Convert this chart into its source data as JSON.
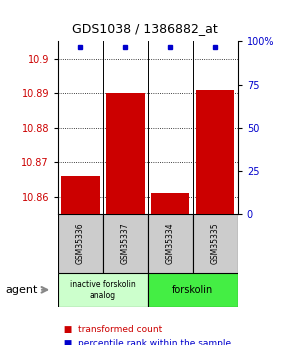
{
  "title": "GDS1038 / 1386882_at",
  "samples": [
    "GSM35336",
    "GSM35337",
    "GSM35334",
    "GSM35335"
  ],
  "bar_values": [
    10.866,
    10.89,
    10.861,
    10.891
  ],
  "percentile_values": [
    97,
    97,
    97,
    97
  ],
  "bar_color": "#cc0000",
  "dot_color": "#0000cc",
  "ylim_left": [
    10.855,
    10.905
  ],
  "ylim_right": [
    0,
    100
  ],
  "yticks_left": [
    10.86,
    10.87,
    10.88,
    10.89,
    10.9
  ],
  "yticks_right": [
    0,
    25,
    50,
    75,
    100
  ],
  "ytick_labels_right": [
    "0",
    "25",
    "50",
    "75",
    "100%"
  ],
  "groups": [
    {
      "label": "inactive forskolin\nanalog",
      "color": "#ccffcc"
    },
    {
      "label": "forskolin",
      "color": "#44ee44"
    }
  ],
  "agent_label": "agent",
  "legend_items": [
    {
      "color": "#cc0000",
      "label": "transformed count"
    },
    {
      "color": "#0000cc",
      "label": "percentile rank within the sample"
    }
  ],
  "bar_base": 10.855,
  "bar_width": 0.85,
  "background_color": "#ffffff"
}
